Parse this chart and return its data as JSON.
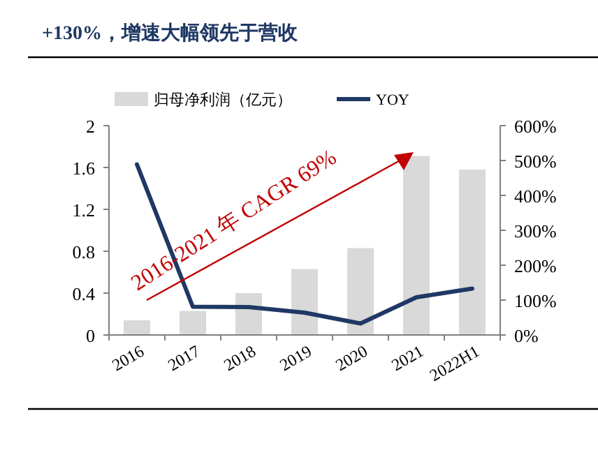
{
  "chart_data": {
    "type": "bar",
    "title": "+130%，增速大幅领先于营收",
    "categories": [
      "2016",
      "2017",
      "2018",
      "2019",
      "2020",
      "2021",
      "2022H1"
    ],
    "series": [
      {
        "name": "归母净利润（亿元）",
        "color": "#d9d9d9",
        "values": [
          0.14,
          0.23,
          0.4,
          0.63,
          0.83,
          1.71,
          1.58
        ]
      },
      {
        "name": "YOY",
        "type": "line",
        "axis": "y2",
        "color": "#1f3864",
        "values": [
          489,
          81,
          80,
          64,
          33,
          108,
          133
        ]
      }
    ],
    "ylim": [
      0,
      2
    ],
    "yticks": [
      0,
      0.4,
      0.8,
      1.2,
      1.6,
      2
    ],
    "y2lim": [
      0,
      600
    ],
    "y2ticks": [
      {
        "value": 0,
        "label": "0%"
      },
      {
        "value": 100,
        "label": "100%"
      },
      {
        "value": 200,
        "label": "200%"
      },
      {
        "value": 300,
        "label": "300%"
      },
      {
        "value": 400,
        "label": "400%"
      },
      {
        "value": 500,
        "label": "500%"
      },
      {
        "value": 600,
        "label": "600%"
      }
    ],
    "legend": "top",
    "annotations": [
      "2016-2021 年 CAGR 69%"
    ]
  }
}
